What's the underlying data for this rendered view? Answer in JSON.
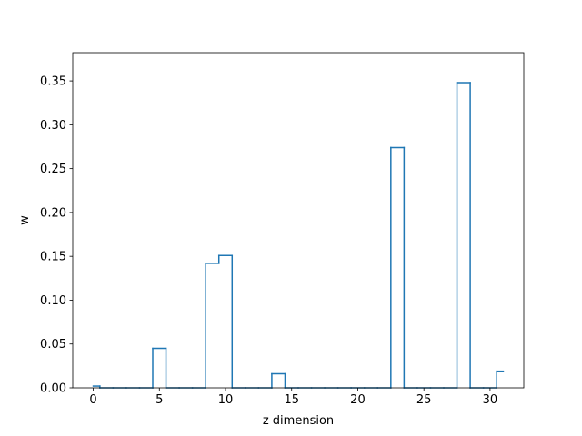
{
  "chart_data": {
    "type": "line",
    "step": "mid",
    "title": "",
    "xlabel": "z dimension",
    "ylabel": "w",
    "xlim": [
      -1.55,
      32.55
    ],
    "ylim": [
      0.0,
      0.3822
    ],
    "x_ticks": [
      0,
      5,
      10,
      15,
      20,
      25,
      30
    ],
    "x_tick_labels": [
      "0",
      "5",
      "10",
      "15",
      "20",
      "25",
      "30"
    ],
    "y_ticks": [
      0.0,
      0.05,
      0.1,
      0.15,
      0.2,
      0.25,
      0.3,
      0.35
    ],
    "y_tick_labels": [
      "0.00",
      "0.05",
      "0.10",
      "0.15",
      "0.20",
      "0.25",
      "0.30",
      "0.35"
    ],
    "grid": false,
    "legend": "none",
    "series_color": "#1f77b4",
    "x": [
      0,
      1,
      2,
      3,
      4,
      5,
      6,
      7,
      8,
      9,
      10,
      11,
      12,
      13,
      14,
      15,
      16,
      17,
      18,
      19,
      20,
      21,
      22,
      23,
      24,
      25,
      26,
      27,
      28,
      29,
      30,
      31
    ],
    "values": [
      0.002,
      0.0,
      0.0,
      0.0,
      0.0,
      0.045,
      0.0,
      0.0,
      0.0,
      0.142,
      0.151,
      0.0,
      0.0,
      0.0,
      0.016,
      0.0,
      0.0,
      0.0,
      0.0,
      0.0,
      0.0,
      0.0,
      0.0,
      0.274,
      0.0,
      0.0,
      0.0,
      0.0,
      0.348,
      0.0,
      0.0,
      0.019
    ]
  }
}
